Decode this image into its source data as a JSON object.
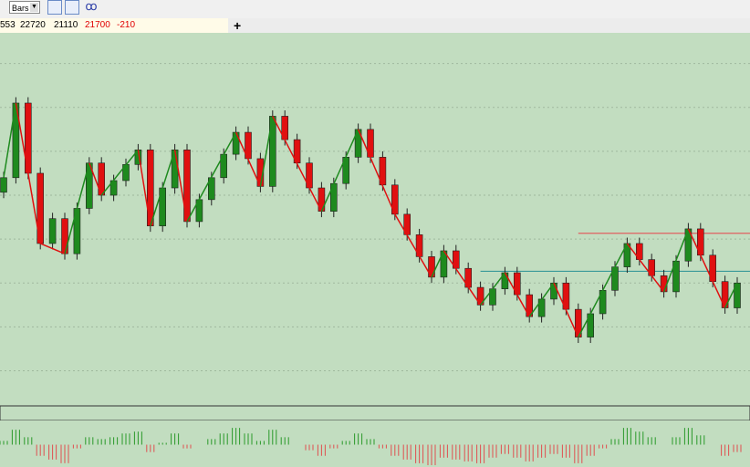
{
  "toolbar": {
    "mode": "Bars"
  },
  "quote": {
    "values": [
      553,
      22720,
      21110,
      21700,
      -210
    ],
    "colors": [
      "#000000",
      "#000000",
      "#000000",
      "#e00000",
      "#e00000"
    ]
  },
  "chart_data": {
    "type": "candlestick",
    "ylim": [
      20640,
      23190
    ],
    "yticks": [
      20880,
      21180,
      21480,
      21780,
      22080,
      22380,
      22680,
      22980
    ],
    "grid": true,
    "up_color": "#1e8a1e",
    "down_color": "#e01010",
    "candles": [
      [
        22100,
        22240,
        22060,
        22200
      ],
      [
        22200,
        22750,
        22160,
        22710
      ],
      [
        22710,
        22750,
        22190,
        22230
      ],
      [
        22230,
        22270,
        21710,
        21750
      ],
      [
        21750,
        21960,
        21710,
        21920
      ],
      [
        21920,
        21960,
        21640,
        21680
      ],
      [
        21680,
        22030,
        21640,
        21990
      ],
      [
        21990,
        22340,
        21950,
        22300
      ],
      [
        22300,
        22340,
        22040,
        22080
      ],
      [
        22080,
        22220,
        22040,
        22180
      ],
      [
        22180,
        22330,
        22140,
        22290
      ],
      [
        22290,
        22430,
        22250,
        22390
      ],
      [
        22390,
        22430,
        21830,
        21870
      ],
      [
        21870,
        22170,
        21830,
        22130
      ],
      [
        22130,
        22430,
        22090,
        22390
      ],
      [
        22390,
        22430,
        21860,
        21900
      ],
      [
        21900,
        22090,
        21860,
        22050
      ],
      [
        22050,
        22240,
        22010,
        22200
      ],
      [
        22200,
        22400,
        22160,
        22360
      ],
      [
        22360,
        22550,
        22320,
        22510
      ],
      [
        22510,
        22550,
        22290,
        22330
      ],
      [
        22330,
        22370,
        22100,
        22140
      ],
      [
        22140,
        22660,
        22100,
        22620
      ],
      [
        22620,
        22660,
        22420,
        22460
      ],
      [
        22460,
        22500,
        22260,
        22300
      ],
      [
        22300,
        22340,
        22090,
        22130
      ],
      [
        22130,
        22170,
        21930,
        21970
      ],
      [
        21970,
        22200,
        21930,
        22160
      ],
      [
        22160,
        22380,
        22120,
        22340
      ],
      [
        22340,
        22570,
        22300,
        22530
      ],
      [
        22530,
        22570,
        22300,
        22340
      ],
      [
        22340,
        22380,
        22110,
        22150
      ],
      [
        22150,
        22190,
        21910,
        21950
      ],
      [
        21950,
        21990,
        21770,
        21810
      ],
      [
        21810,
        21850,
        21620,
        21660
      ],
      [
        21660,
        21700,
        21480,
        21520
      ],
      [
        21520,
        21740,
        21480,
        21700
      ],
      [
        21700,
        21740,
        21540,
        21580
      ],
      [
        21580,
        21620,
        21410,
        21450
      ],
      [
        21450,
        21490,
        21290,
        21330
      ],
      [
        21330,
        21480,
        21290,
        21440
      ],
      [
        21440,
        21590,
        21400,
        21550
      ],
      [
        21550,
        21590,
        21360,
        21400
      ],
      [
        21400,
        21440,
        21210,
        21250
      ],
      [
        21250,
        21410,
        21210,
        21370
      ],
      [
        21370,
        21520,
        21330,
        21480
      ],
      [
        21480,
        21520,
        21260,
        21300
      ],
      [
        21300,
        21340,
        21070,
        21110
      ],
      [
        21110,
        21310,
        21070,
        21270
      ],
      [
        21270,
        21470,
        21230,
        21430
      ],
      [
        21430,
        21630,
        21390,
        21590
      ],
      [
        21590,
        21790,
        21550,
        21750
      ],
      [
        21750,
        21790,
        21600,
        21640
      ],
      [
        21640,
        21680,
        21490,
        21530
      ],
      [
        21530,
        21570,
        21380,
        21420
      ],
      [
        21420,
        21670,
        21380,
        21630
      ],
      [
        21630,
        21890,
        21590,
        21850
      ],
      [
        21850,
        21890,
        21630,
        21670
      ],
      [
        21670,
        21710,
        21450,
        21490
      ],
      [
        21490,
        21530,
        21270,
        21310
      ],
      [
        21310,
        21520,
        21270,
        21480
      ]
    ],
    "zigzag_x": [
      0,
      1,
      3,
      5,
      7,
      8,
      11,
      12,
      14,
      15,
      19,
      21,
      22,
      26,
      29,
      32,
      35,
      36,
      39,
      41,
      43,
      45,
      47,
      51,
      54,
      56,
      59,
      60
    ],
    "zigzag_values": [
      22200,
      22710,
      21750,
      21680,
      22300,
      22080,
      22390,
      21870,
      22390,
      21900,
      22510,
      22140,
      22620,
      21970,
      22530,
      21950,
      21520,
      21700,
      21330,
      21550,
      21250,
      21480,
      21110,
      21750,
      21420,
      21850,
      21310,
      21480
    ],
    "levels": [
      {
        "value": 21820,
        "color": "#e06060",
        "from": 47
      },
      {
        "value": 21560,
        "color": "#3a9a9a",
        "from": 39
      }
    ],
    "oscillator": {
      "ylim": [
        -60,
        60
      ],
      "values": [
        10,
        40,
        20,
        -30,
        -40,
        -50,
        -10,
        20,
        15,
        20,
        30,
        35,
        -20,
        5,
        30,
        -10,
        0,
        15,
        30,
        45,
        30,
        10,
        40,
        20,
        0,
        -15,
        -30,
        -10,
        10,
        30,
        15,
        -10,
        -30,
        -40,
        -50,
        -55,
        -35,
        -40,
        -45,
        -50,
        -35,
        -25,
        -35,
        -45,
        -35,
        -25,
        -35,
        -50,
        -30,
        -10,
        15,
        45,
        35,
        20,
        0,
        20,
        45,
        25,
        0,
        -30,
        -20
      ]
    }
  }
}
